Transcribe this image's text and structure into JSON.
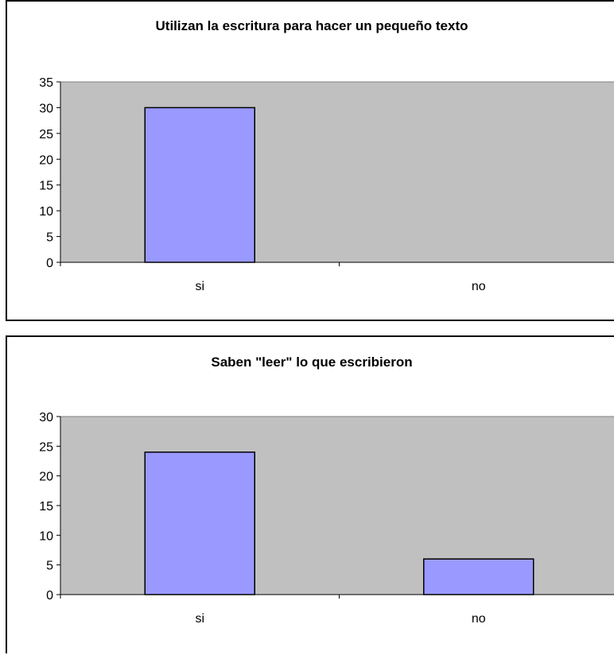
{
  "colors": {
    "plot_area": "#c0c0c0",
    "bar_fill": "#9999ff",
    "bar_stroke": "#000000",
    "axis": "#000000"
  },
  "chart_data": [
    {
      "type": "bar",
      "title": "Utilizan la escritura para hacer un pequeño texto",
      "xlabel": "",
      "ylabel": "",
      "categories": [
        "si",
        "no"
      ],
      "values": [
        30,
        0
      ],
      "ylim": [
        0,
        35
      ],
      "ytick_step": 5,
      "yticks": [
        "0",
        "5",
        "10",
        "15",
        "20",
        "25",
        "30",
        "35"
      ],
      "grid": false,
      "legend": "none"
    },
    {
      "type": "bar",
      "title": "Saben \"leer\" lo que escribieron",
      "xlabel": "",
      "ylabel": "",
      "categories": [
        "si",
        "no"
      ],
      "values": [
        24,
        6
      ],
      "ylim": [
        0,
        30
      ],
      "ytick_step": 5,
      "yticks": [
        "0",
        "5",
        "10",
        "15",
        "20",
        "25",
        "30"
      ],
      "grid": false,
      "legend": "none"
    }
  ]
}
